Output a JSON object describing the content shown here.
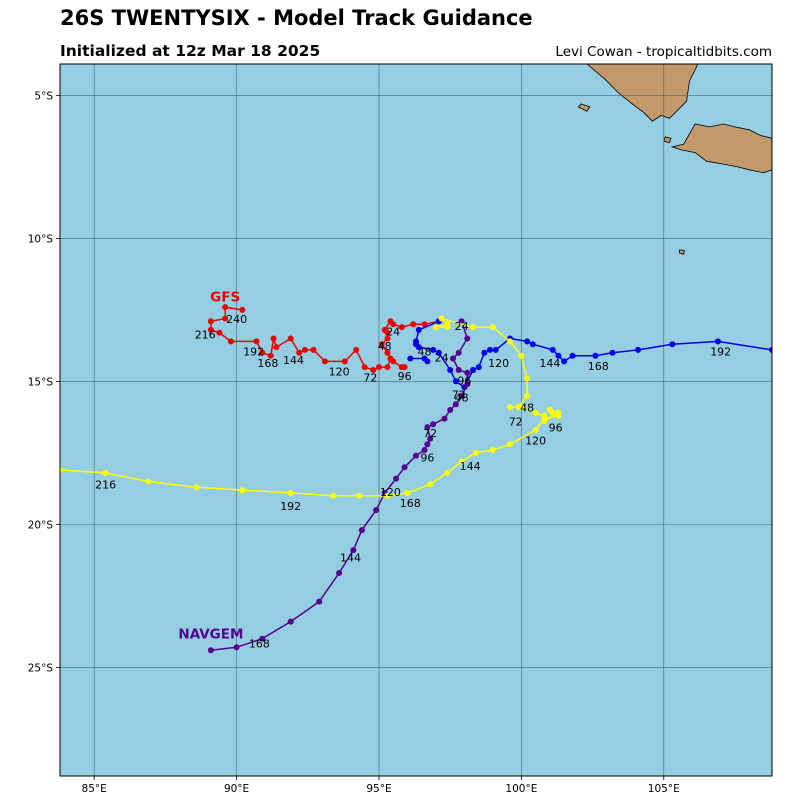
{
  "header": {
    "title": "26S TWENTYSIX - Model Track Guidance",
    "subtitle": "Initialized at 12z Mar 18 2025",
    "credit": "Levi Cowan - tropicaltidbits.com"
  },
  "map": {
    "lon_range": [
      83.8,
      108.8
    ],
    "lat_range": [
      -28.8,
      -3.9
    ],
    "ocean_color": "#95cde3",
    "land_color": "#c1996b",
    "grid_color": "#44676f",
    "lon_ticks": [
      {
        "value": 85,
        "label": "85°E"
      },
      {
        "value": 90,
        "label": "90°E"
      },
      {
        "value": 95,
        "label": "95°E"
      },
      {
        "value": 100,
        "label": "100°E"
      },
      {
        "value": 105,
        "label": "105°E"
      }
    ],
    "lat_ticks": [
      {
        "value": -5,
        "label": "5°S"
      },
      {
        "value": -10,
        "label": "10°S"
      },
      {
        "value": -15,
        "label": "15°S"
      },
      {
        "value": -20,
        "label": "20°S"
      },
      {
        "value": -25,
        "label": "25°S"
      }
    ],
    "land": [
      {
        "name": "sumatra",
        "points": [
          [
            102.3,
            -3.9
          ],
          [
            102.9,
            -4.4
          ],
          [
            103.4,
            -4.9
          ],
          [
            103.9,
            -5.3
          ],
          [
            104.3,
            -5.6
          ],
          [
            104.6,
            -5.9
          ],
          [
            104.9,
            -5.7
          ],
          [
            105.2,
            -5.8
          ],
          [
            105.5,
            -5.5
          ],
          [
            105.8,
            -5.2
          ],
          [
            105.9,
            -4.5
          ],
          [
            106.2,
            -3.9
          ]
        ]
      },
      {
        "name": "java",
        "points": [
          [
            105.3,
            -6.8
          ],
          [
            105.7,
            -6.7
          ],
          [
            106.1,
            -6.0
          ],
          [
            106.6,
            -6.1
          ],
          [
            107.1,
            -6.0
          ],
          [
            107.5,
            -6.1
          ],
          [
            108.0,
            -6.2
          ],
          [
            108.4,
            -6.4
          ],
          [
            108.8,
            -6.5
          ],
          [
            108.8,
            -7.6
          ],
          [
            108.5,
            -7.7
          ],
          [
            108.0,
            -7.6
          ],
          [
            107.6,
            -7.5
          ],
          [
            107.1,
            -7.4
          ],
          [
            106.5,
            -7.3
          ],
          [
            106.1,
            -7.0
          ],
          [
            105.6,
            -6.9
          ]
        ]
      },
      {
        "name": "enggano",
        "points": [
          [
            102.1,
            -5.3
          ],
          [
            102.4,
            -5.4
          ],
          [
            102.3,
            -5.55
          ],
          [
            102.0,
            -5.4
          ]
        ]
      },
      {
        "name": "panaitan",
        "points": [
          [
            105.05,
            -6.45
          ],
          [
            105.25,
            -6.5
          ],
          [
            105.2,
            -6.65
          ],
          [
            105.0,
            -6.6
          ]
        ]
      },
      {
        "name": "christmas-island",
        "points": [
          [
            105.55,
            -10.4
          ],
          [
            105.72,
            -10.42
          ],
          [
            105.7,
            -10.55
          ],
          [
            105.56,
            -10.52
          ]
        ]
      }
    ],
    "tracks": [
      {
        "model": "GFS",
        "color": "#ee0000",
        "show_name": true,
        "name_at": [
          89.6,
          -12.2
        ],
        "points": [
          [
            97.1,
            -12.9
          ],
          [
            96.6,
            -13.0
          ],
          [
            96.2,
            -13.0
          ],
          [
            95.8,
            -13.1
          ],
          [
            95.5,
            -13.0
          ],
          [
            95.4,
            -12.9
          ],
          [
            95.2,
            -13.2
          ],
          [
            95.3,
            -13.3
          ],
          [
            95.3,
            -13.5
          ],
          [
            95.1,
            -13.7
          ],
          [
            95.3,
            -14.0
          ],
          [
            95.4,
            -14.2
          ],
          [
            95.3,
            -14.5
          ],
          [
            95.0,
            -14.5
          ],
          [
            94.8,
            -14.6
          ],
          [
            94.5,
            -14.5
          ],
          [
            94.2,
            -13.9
          ],
          [
            93.8,
            -14.3
          ],
          [
            93.1,
            -14.3
          ],
          [
            92.7,
            -13.9
          ],
          [
            92.4,
            -13.9
          ],
          [
            92.2,
            -14.0
          ],
          [
            91.9,
            -13.5
          ],
          [
            91.4,
            -13.8
          ],
          [
            91.3,
            -13.5
          ],
          [
            91.2,
            -14.1
          ],
          [
            90.9,
            -14.0
          ],
          [
            90.7,
            -13.6
          ],
          [
            89.8,
            -13.6
          ],
          [
            89.4,
            -13.3
          ],
          [
            89.1,
            -13.2
          ],
          [
            89.1,
            -12.9
          ],
          [
            89.6,
            -12.8
          ],
          [
            89.6,
            -12.4
          ],
          [
            90.2,
            -12.5
          ]
        ],
        "labels": [
          {
            "text": "24",
            "at": [
              95.5,
              -13.4
            ]
          },
          {
            "text": "48",
            "at": [
              95.2,
              -13.9
            ]
          },
          {
            "text": "72",
            "at": [
              94.7,
              -15.0
            ]
          },
          {
            "text": "96",
            "at": [
              95.9,
              -14.95
            ]
          },
          {
            "text": "120",
            "at": [
              93.6,
              -14.8
            ]
          },
          {
            "text": "144",
            "at": [
              92.0,
              -14.4
            ]
          },
          {
            "text": "168",
            "at": [
              91.1,
              -14.5
            ]
          },
          {
            "text": "192",
            "at": [
              90.6,
              -14.1
            ]
          },
          {
            "text": "216",
            "at": [
              88.9,
              -13.5
            ]
          },
          {
            "text": "240",
            "at": [
              90.0,
              -12.95
            ]
          }
        ]
      },
      {
        "model": "GFS-extra",
        "color": "#ee0000",
        "show_name": false,
        "points": [
          [
            95.5,
            -14.3
          ],
          [
            95.8,
            -14.5
          ],
          [
            95.9,
            -14.5
          ]
        ],
        "labels": []
      },
      {
        "model": "CMC",
        "color": "#0000ee",
        "show_name": false,
        "points": [
          [
            97.1,
            -12.9
          ],
          [
            96.4,
            -13.2
          ],
          [
            96.3,
            -13.6
          ],
          [
            96.3,
            -13.7
          ],
          [
            96.4,
            -13.8
          ],
          [
            96.9,
            -13.9
          ],
          [
            97.1,
            -14.0
          ],
          [
            97.5,
            -14.6
          ],
          [
            97.7,
            -15.0
          ],
          [
            98.0,
            -15.2
          ],
          [
            98.3,
            -14.6
          ],
          [
            98.5,
            -14.5
          ],
          [
            98.7,
            -14.0
          ],
          [
            98.9,
            -13.9
          ],
          [
            99.1,
            -13.9
          ],
          [
            99.6,
            -13.5
          ],
          [
            100.2,
            -13.6
          ],
          [
            100.4,
            -13.7
          ],
          [
            101.1,
            -13.9
          ],
          [
            101.3,
            -14.1
          ],
          [
            101.5,
            -14.3
          ],
          [
            101.8,
            -14.1
          ],
          [
            102.6,
            -14.1
          ],
          [
            103.2,
            -14.0
          ],
          [
            104.1,
            -13.9
          ],
          [
            105.3,
            -13.7
          ],
          [
            106.9,
            -13.6
          ],
          [
            108.8,
            -13.9
          ]
        ],
        "labels": [
          {
            "text": "24",
            "at": [
              97.2,
              -14.3
            ]
          },
          {
            "text": "48",
            "at": [
              96.6,
              -14.1
            ]
          },
          {
            "text": "72",
            "at": [
              97.8,
              -15.6
            ]
          },
          {
            "text": "96",
            "at": [
              98.0,
              -15.1
            ]
          },
          {
            "text": "120",
            "at": [
              99.2,
              -14.5
            ]
          },
          {
            "text": "144",
            "at": [
              101.0,
              -14.5
            ]
          },
          {
            "text": "168",
            "at": [
              102.7,
              -14.6
            ]
          },
          {
            "text": "192",
            "at": [
              107.0,
              -14.1
            ]
          }
        ]
      },
      {
        "model": "CMC-extra",
        "color": "#0000ee",
        "show_name": false,
        "points": [
          [
            96.1,
            -14.2
          ],
          [
            96.6,
            -14.2
          ],
          [
            96.7,
            -14.3
          ]
        ],
        "labels": []
      },
      {
        "model": "NAVGEM",
        "color": "#55008f",
        "show_name": true,
        "name_at": [
          89.1,
          -24.0
        ],
        "points": [
          [
            97.9,
            -12.9
          ],
          [
            98.1,
            -13.5
          ],
          [
            97.8,
            -14.0
          ],
          [
            97.6,
            -14.2
          ],
          [
            97.8,
            -14.6
          ],
          [
            98.1,
            -14.7
          ],
          [
            98.1,
            -15.1
          ],
          [
            97.9,
            -15.5
          ],
          [
            97.7,
            -15.8
          ],
          [
            97.5,
            -16.0
          ],
          [
            97.3,
            -16.3
          ],
          [
            96.9,
            -16.5
          ],
          [
            96.7,
            -16.6
          ],
          [
            96.8,
            -17.0
          ],
          [
            96.7,
            -17.2
          ],
          [
            96.6,
            -17.4
          ],
          [
            96.3,
            -17.6
          ],
          [
            95.9,
            -18.0
          ],
          [
            95.6,
            -18.4
          ],
          [
            95.2,
            -18.9
          ],
          [
            94.9,
            -19.5
          ],
          [
            94.4,
            -20.2
          ],
          [
            94.1,
            -20.9
          ],
          [
            93.6,
            -21.7
          ],
          [
            92.9,
            -22.7
          ],
          [
            91.9,
            -23.4
          ],
          [
            90.9,
            -24.0
          ],
          [
            90.0,
            -24.3
          ],
          [
            89.1,
            -24.4
          ]
        ],
        "labels": [
          {
            "text": "24",
            "at": [
              97.9,
              -13.2
            ]
          },
          {
            "text": "48",
            "at": [
              97.9,
              -15.7
            ]
          },
          {
            "text": "72",
            "at": [
              96.8,
              -16.95
            ]
          },
          {
            "text": "96",
            "at": [
              96.7,
              -17.8
            ]
          },
          {
            "text": "120",
            "at": [
              95.4,
              -19.0
            ]
          },
          {
            "text": "144",
            "at": [
              94.0,
              -21.3
            ]
          },
          {
            "text": "168",
            "at": [
              90.8,
              -24.3
            ]
          }
        ]
      },
      {
        "model": "UKMET",
        "color": "#ffff00",
        "show_name": false,
        "points": [
          [
            97.4,
            -13.1
          ],
          [
            97.0,
            -13.1
          ],
          [
            97.4,
            -13.0
          ],
          [
            97.2,
            -12.8
          ],
          [
            98.3,
            -13.1
          ],
          [
            99.0,
            -13.1
          ],
          [
            99.6,
            -13.6
          ],
          [
            100.0,
            -14.1
          ],
          [
            100.2,
            -14.9
          ],
          [
            100.2,
            -15.5
          ],
          [
            99.9,
            -15.9
          ],
          [
            99.6,
            -15.9
          ],
          [
            100.0,
            -15.9
          ],
          [
            100.5,
            -16.1
          ],
          [
            100.8,
            -16.2
          ],
          [
            100.8,
            -16.4
          ],
          [
            101.3,
            -16.1
          ],
          [
            101.0,
            -16.0
          ],
          [
            101.1,
            -16.1
          ],
          [
            101.3,
            -16.2
          ],
          [
            100.8,
            -16.3
          ],
          [
            100.5,
            -16.7
          ],
          [
            99.6,
            -17.2
          ],
          [
            99.0,
            -17.4
          ],
          [
            98.4,
            -17.5
          ],
          [
            97.9,
            -17.8
          ],
          [
            97.4,
            -18.2
          ],
          [
            96.8,
            -18.6
          ],
          [
            96.0,
            -18.9
          ],
          [
            95.3,
            -19.0
          ],
          [
            94.3,
            -19.0
          ],
          [
            93.4,
            -19.0
          ],
          [
            91.9,
            -18.9
          ],
          [
            90.2,
            -18.8
          ],
          [
            88.6,
            -18.7
          ],
          [
            86.9,
            -18.5
          ],
          [
            85.4,
            -18.2
          ],
          [
            83.8,
            -18.1
          ]
        ],
        "labels": [
          {
            "text": "48",
            "at": [
              100.2,
              -16.05
            ]
          },
          {
            "text": "72",
            "at": [
              99.8,
              -16.55
            ]
          },
          {
            "text": "96",
            "at": [
              101.2,
              -16.75
            ]
          },
          {
            "text": "120",
            "at": [
              100.5,
              -17.2
            ]
          },
          {
            "text": "144",
            "at": [
              98.2,
              -18.1
            ]
          },
          {
            "text": "168",
            "at": [
              96.1,
              -19.4
            ]
          },
          {
            "text": "192",
            "at": [
              91.9,
              -19.5
            ]
          },
          {
            "text": "216",
            "at": [
              85.4,
              -18.75
            ]
          }
        ]
      }
    ]
  }
}
